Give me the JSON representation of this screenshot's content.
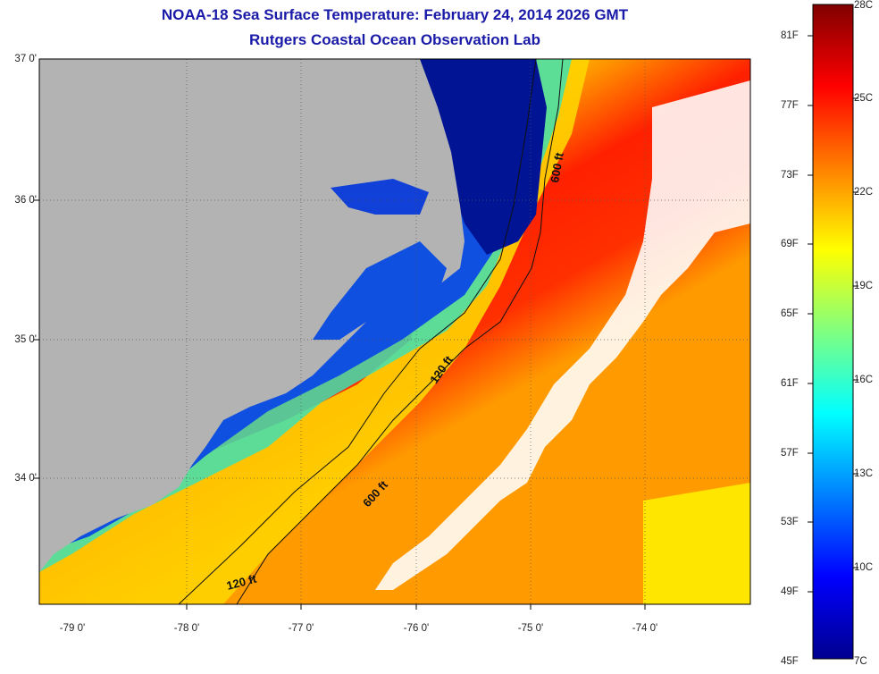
{
  "title": "NOAA-18 Sea Surface Temperature:  February 24, 2014 2026 GMT",
  "subtitle": "Rutgers Coastal Ocean Observation Lab",
  "map": {
    "lat_labels": [
      "37 0'",
      "36 0'",
      "35 0'",
      "34 0'"
    ],
    "lon_labels": [
      "-79 0'",
      "-78 0'",
      "-77 0'",
      "-76 0'",
      "-75 0'",
      "-74 0'"
    ],
    "contour_labels": [
      "600 ft",
      "120 ft",
      "600 ft",
      "120 ft"
    ],
    "land_color": "#b3b3b3",
    "cloud_color": "#ffffff"
  },
  "colorbar": {
    "fahrenheit_labels": [
      "81F",
      "77F",
      "73F",
      "69F",
      "65F",
      "61F",
      "57F",
      "53F",
      "49F",
      "45F"
    ],
    "celsius_labels": [
      "28C",
      "25C",
      "22C",
      "19C",
      "16C",
      "13C",
      "10C",
      "7C"
    ],
    "colors": [
      "#800000",
      "#ff0000",
      "#ff8000",
      "#ffff00",
      "#80ff80",
      "#00ffff",
      "#0080ff",
      "#0000ff",
      "#00008f"
    ]
  }
}
